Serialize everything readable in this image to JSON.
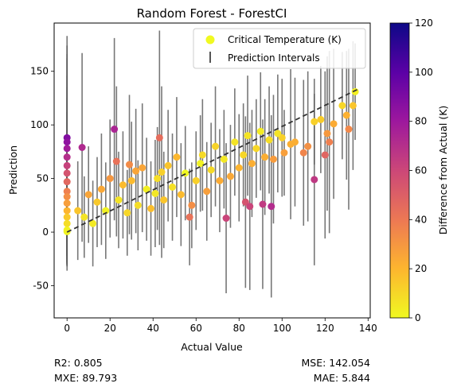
{
  "chart_data": {
    "type": "scatter",
    "title": "Random Forest - ForestCI",
    "xlabel": "Actual Value",
    "ylabel": "Prediction",
    "xlim": [
      -6,
      141
    ],
    "ylim": [
      -80,
      195
    ],
    "xticks": [
      0,
      20,
      40,
      60,
      80,
      100,
      120,
      140
    ],
    "yticks": [
      -50,
      0,
      50,
      100,
      150
    ],
    "grid": false,
    "legend_position": "top-right",
    "legend": [
      {
        "label": "Critical Temperature (K)",
        "marker": "circle",
        "color": "#f0f921"
      },
      {
        "label": "Prediction Intervals",
        "marker": "vertical-line",
        "color": "#555555"
      }
    ],
    "reference_line": {
      "style": "dashed",
      "color": "#333333",
      "from": [
        0,
        0
      ],
      "to": [
        135,
        133
      ]
    },
    "colorbar": {
      "label": "Difference from Actual (K)",
      "range": [
        0,
        120
      ],
      "ticks": [
        0,
        20,
        40,
        60,
        80,
        100,
        120
      ],
      "colormap": "plasma_r",
      "stops": [
        "#f0f921",
        "#fdb42f",
        "#ed7953",
        "#cc4778",
        "#9c179e",
        "#5c01a6",
        "#0d0887"
      ]
    },
    "points": [
      [
        0,
        0.5,
        0.5,
        20
      ],
      [
        0,
        88,
        88,
        95
      ],
      [
        0,
        84,
        84,
        90
      ],
      [
        0,
        78,
        78,
        88
      ],
      [
        0,
        70,
        70,
        92
      ],
      [
        0,
        62,
        62,
        84
      ],
      [
        0,
        55,
        55,
        80
      ],
      [
        0,
        47,
        47,
        78
      ],
      [
        0,
        38,
        38,
        74
      ],
      [
        0,
        33,
        33,
        62
      ],
      [
        0,
        27,
        27,
        58
      ],
      [
        0,
        20,
        20,
        50
      ],
      [
        0,
        14,
        14,
        44
      ],
      [
        0,
        8,
        8,
        40
      ],
      [
        0,
        2,
        2,
        30
      ],
      [
        7,
        79,
        72,
        88
      ],
      [
        22,
        96,
        74,
        85
      ],
      [
        23,
        66,
        43,
        70
      ],
      [
        29,
        63,
        34,
        65
      ],
      [
        32,
        57,
        25,
        58
      ],
      [
        41,
        36,
        5,
        50
      ],
      [
        43,
        88,
        45,
        100
      ],
      [
        44,
        56,
        12,
        80
      ],
      [
        57,
        14,
        43,
        45
      ],
      [
        62,
        64,
        2,
        45
      ],
      [
        74,
        13,
        61,
        70
      ],
      [
        83,
        28,
        55,
        80
      ],
      [
        85,
        24,
        61,
        78
      ],
      [
        91,
        26,
        65,
        79
      ],
      [
        95,
        24,
        71,
        85
      ],
      [
        100,
        88,
        12,
        55
      ],
      [
        101,
        74,
        27,
        40
      ],
      [
        104,
        82,
        22,
        70
      ],
      [
        106,
        84,
        22,
        60
      ],
      [
        110,
        74,
        36,
        68
      ],
      [
        112,
        80,
        32,
        70
      ],
      [
        115,
        49,
        66,
        80
      ],
      [
        115,
        103,
        12,
        40
      ],
      [
        118,
        105,
        13,
        50
      ],
      [
        120,
        72,
        48,
        78
      ],
      [
        121,
        92,
        29,
        72
      ],
      [
        122,
        84,
        38,
        85
      ],
      [
        124,
        101,
        23,
        70
      ],
      [
        128,
        118,
        10,
        50
      ],
      [
        130,
        109,
        21,
        60
      ],
      [
        131,
        96,
        35,
        75
      ],
      [
        133,
        118,
        15,
        60
      ],
      [
        134,
        131,
        3,
        45
      ],
      [
        5,
        20,
        15,
        46
      ],
      [
        8,
        14,
        6,
        38
      ],
      [
        10,
        35,
        25,
        45
      ],
      [
        12,
        8,
        4,
        40
      ],
      [
        14,
        28,
        14,
        42
      ],
      [
        16,
        40,
        24,
        52
      ],
      [
        18,
        20,
        2,
        45
      ],
      [
        20,
        50,
        30,
        55
      ],
      [
        24,
        30,
        6,
        45
      ],
      [
        26,
        44,
        18,
        50
      ],
      [
        28,
        18,
        10,
        40
      ],
      [
        30,
        48,
        18,
        55
      ],
      [
        33,
        25,
        8,
        42
      ],
      [
        35,
        60,
        25,
        60
      ],
      [
        37,
        40,
        3,
        48
      ],
      [
        39,
        22,
        17,
        44
      ],
      [
        42,
        50,
        8,
        48
      ],
      [
        45,
        30,
        15,
        45
      ],
      [
        47,
        62,
        15,
        52
      ],
      [
        49,
        42,
        7,
        50
      ],
      [
        51,
        70,
        19,
        56
      ],
      [
        53,
        35,
        18,
        48
      ],
      [
        55,
        55,
        0,
        44
      ],
      [
        58,
        25,
        33,
        40
      ],
      [
        60,
        48,
        12,
        46
      ],
      [
        63,
        72,
        9,
        52
      ],
      [
        65,
        38,
        27,
        46
      ],
      [
        67,
        58,
        9,
        44
      ],
      [
        69,
        80,
        11,
        56
      ],
      [
        71,
        48,
        23,
        48
      ],
      [
        73,
        68,
        5,
        46
      ],
      [
        76,
        52,
        24,
        48
      ],
      [
        78,
        84,
        6,
        50
      ],
      [
        80,
        60,
        20,
        50
      ],
      [
        82,
        72,
        10,
        48
      ],
      [
        84,
        90,
        6,
        56
      ],
      [
        86,
        64,
        22,
        50
      ],
      [
        88,
        78,
        10,
        46
      ],
      [
        90,
        94,
        4,
        55
      ],
      [
        92,
        70,
        22,
        54
      ],
      [
        94,
        86,
        8,
        50
      ],
      [
        96,
        68,
        28,
        60
      ],
      [
        98,
        92,
        6,
        55
      ]
    ],
    "metrics": {
      "left": [
        "R2: 0.805",
        "MXE: 89.793"
      ],
      "right": [
        "MSE: 142.054",
        "MAE: 5.844"
      ]
    }
  }
}
